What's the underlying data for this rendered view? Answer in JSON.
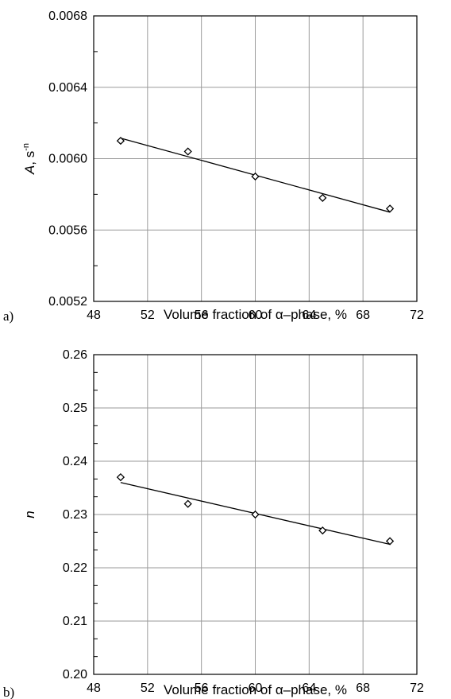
{
  "chart_data": [
    {
      "panel": "a)",
      "type": "scatter",
      "xlabel": "Volume fraction of α–phase, %",
      "ylabel": "A, s",
      "ylabel_superscript": "-n",
      "xlim": [
        48,
        72
      ],
      "ylim": [
        0.0052,
        0.0068
      ],
      "xticks": [
        "48",
        "52",
        "56",
        "60",
        "64",
        "68",
        "72"
      ],
      "yticks": [
        "0.0052",
        "0.0056",
        "0.0060",
        "0.0064",
        "0.0068"
      ],
      "grid": true,
      "series": [
        {
          "x": [
            50,
            55,
            60,
            65,
            70
          ],
          "y": [
            0.0061,
            0.00604,
            0.0059,
            0.00578,
            0.00572
          ],
          "marker": "diamond"
        }
      ],
      "fit_line": {
        "x": [
          50,
          70
        ],
        "y": [
          0.006115,
          0.0057
        ]
      }
    },
    {
      "panel": "b)",
      "type": "scatter",
      "xlabel": "Volume fraction of α–phase, %",
      "ylabel": "n",
      "xlim": [
        48,
        72
      ],
      "ylim": [
        0.2,
        0.26
      ],
      "xticks": [
        "48",
        "52",
        "56",
        "60",
        "64",
        "68",
        "72"
      ],
      "yticks": [
        "0.20",
        "0.21",
        "0.22",
        "0.23",
        "0.24",
        "0.25",
        "0.26"
      ],
      "grid": true,
      "series": [
        {
          "x": [
            50,
            55,
            60,
            65,
            70
          ],
          "y": [
            0.237,
            0.232,
            0.23,
            0.227,
            0.225
          ],
          "marker": "diamond"
        }
      ],
      "fit_line": {
        "x": [
          50,
          70
        ],
        "y": [
          0.236,
          0.2244
        ]
      }
    }
  ]
}
